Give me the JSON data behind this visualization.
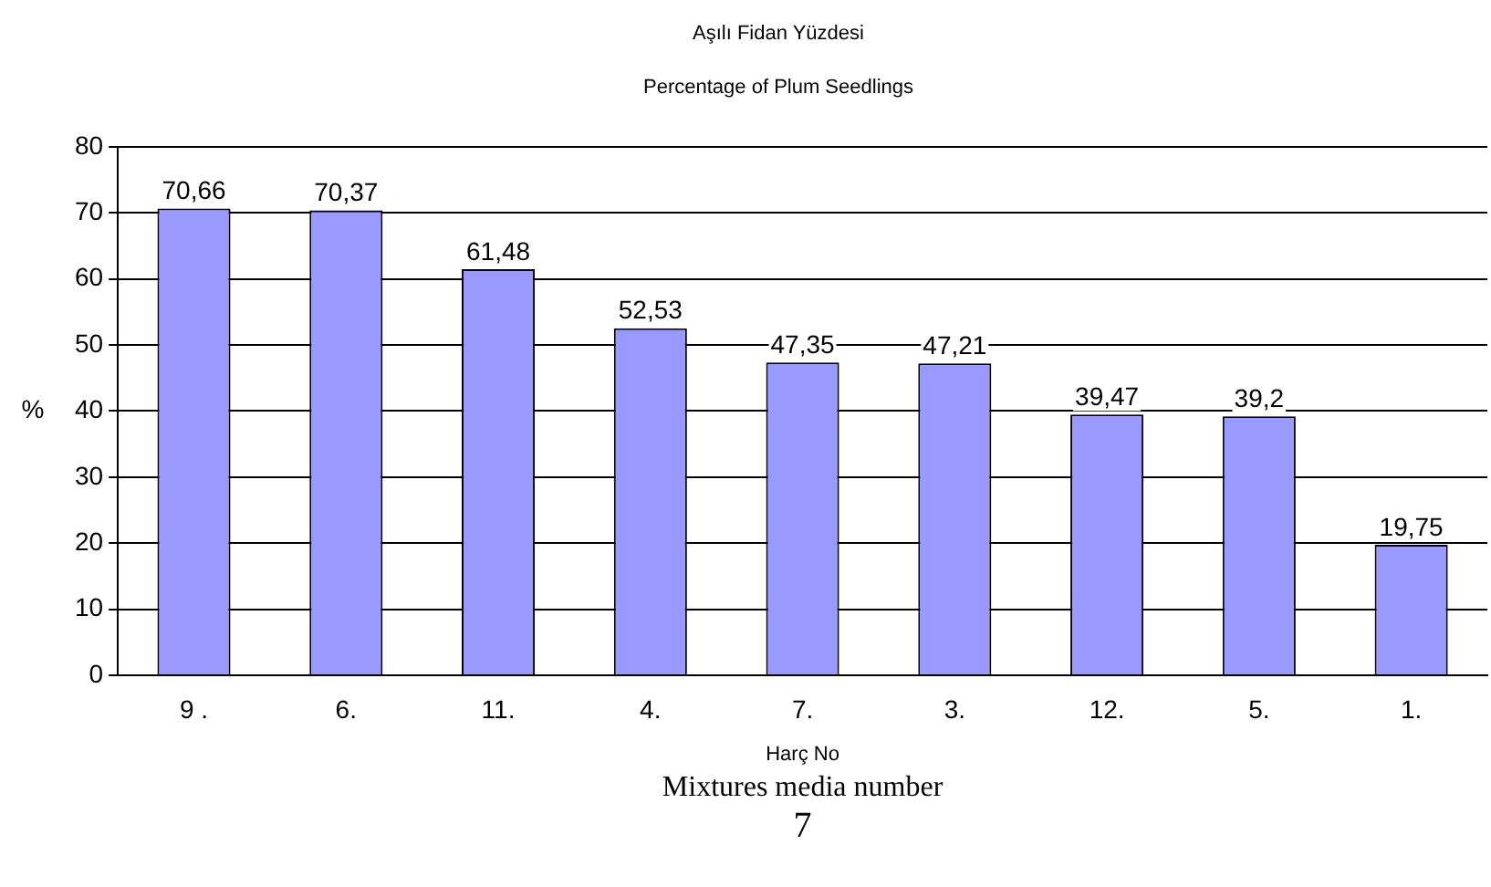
{
  "chart_data": {
    "type": "bar",
    "title": "Aşılı Fidan Yüzdesi",
    "subtitle": "Percentage of Plum Seedlings",
    "xlabel": "Harç No",
    "ylabel": "%",
    "categories": [
      "9 .",
      "6.",
      "11.",
      "4.",
      "7.",
      "3.",
      "12.",
      "5.",
      "1."
    ],
    "values": [
      70.66,
      70.37,
      61.48,
      52.53,
      47.35,
      47.21,
      39.47,
      39.2,
      19.75
    ],
    "value_labels": [
      "70,66",
      "70,37",
      "61,48",
      "52,53",
      "47,35",
      "47,21",
      "39,47",
      "39,2",
      "19,75"
    ],
    "color": "#9999ff",
    "ylim": [
      0,
      80
    ],
    "yticks": [
      0,
      10,
      20,
      30,
      40,
      50,
      60,
      70,
      80
    ],
    "grid": "y",
    "legend": false,
    "annotations": [
      "Mixtures media number",
      "7"
    ]
  }
}
